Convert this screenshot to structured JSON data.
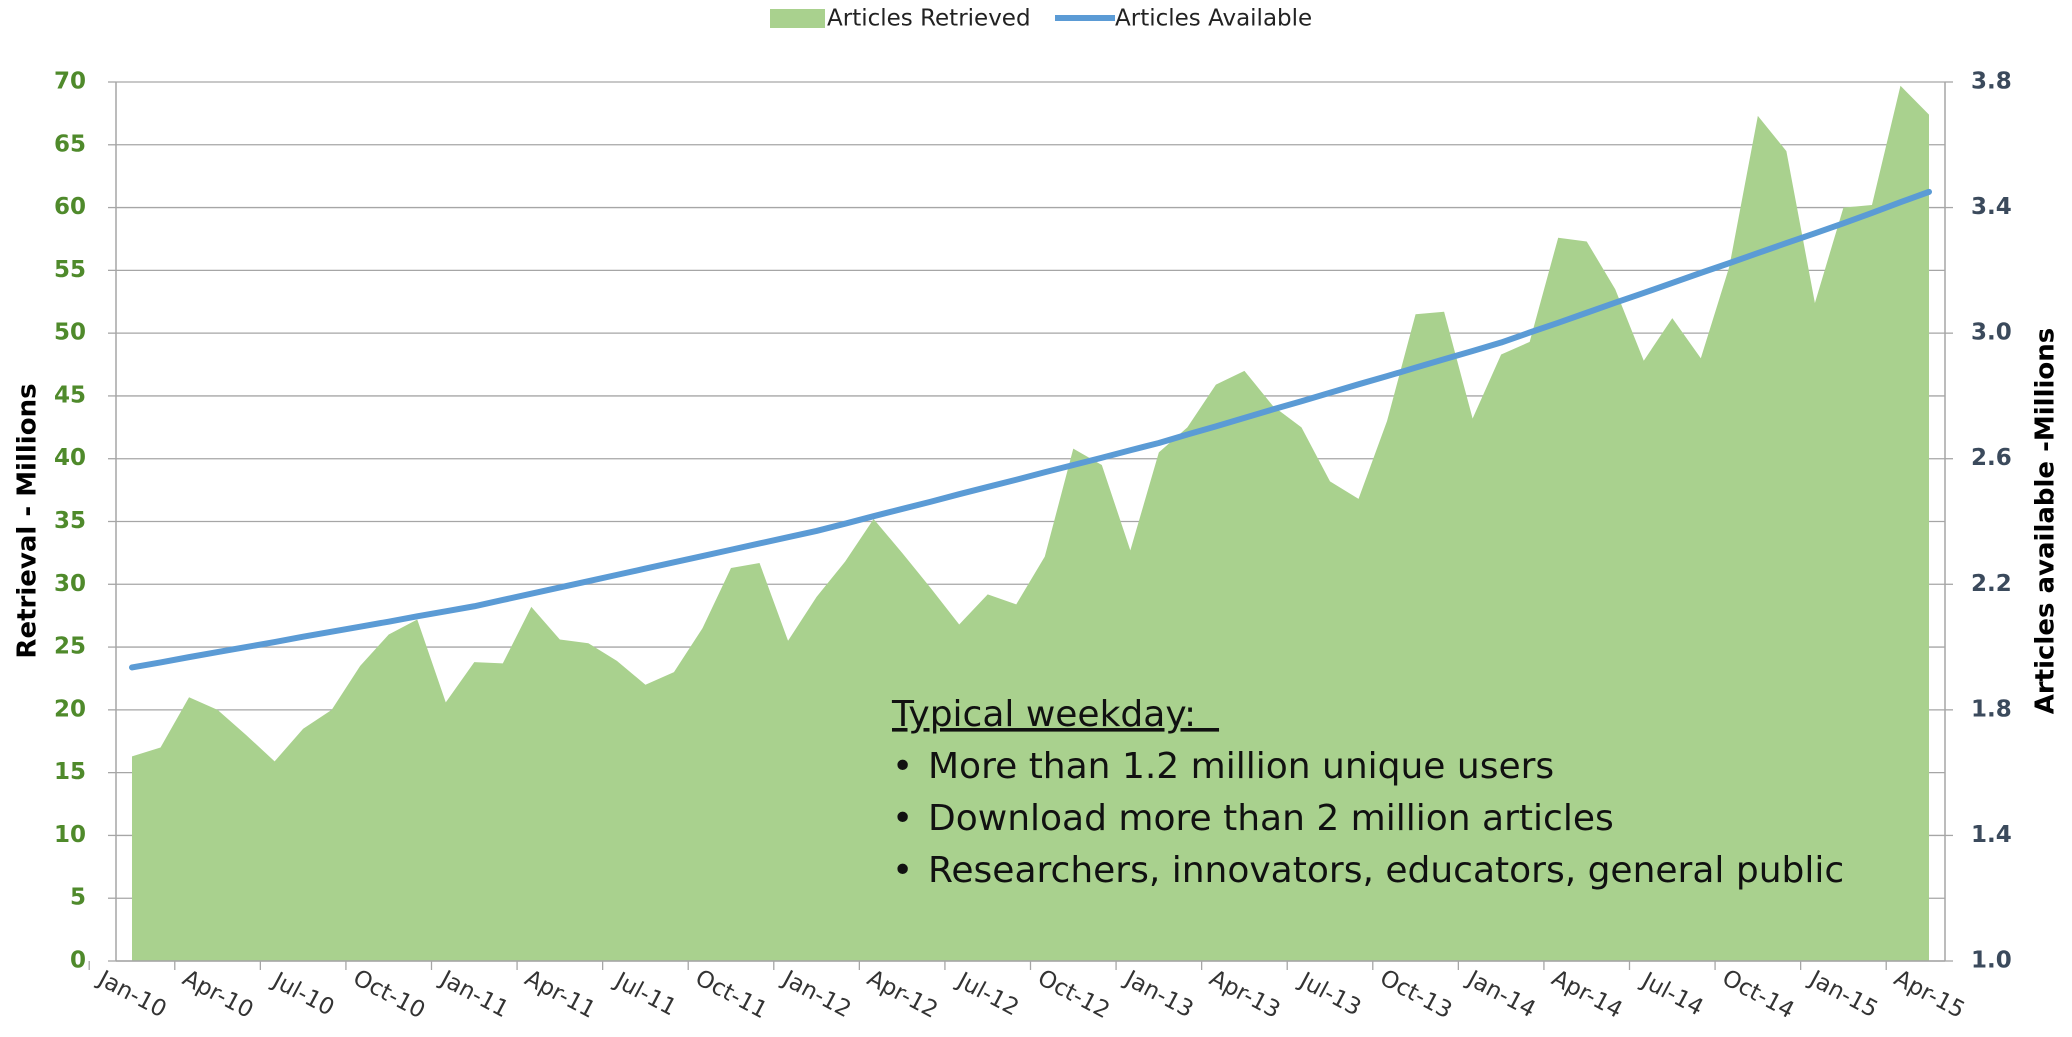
{
  "chart_data": {
    "type": "area-line",
    "categories": [
      "Jan-10",
      null,
      null,
      "Apr-10",
      null,
      null,
      "Jul-10",
      null,
      null,
      "Oct-10",
      null,
      null,
      "Jan-11",
      null,
      null,
      "Apr-11",
      null,
      null,
      "Jul-11",
      null,
      null,
      "Oct-11",
      null,
      null,
      "Jan-12",
      null,
      null,
      "Apr-12",
      null,
      null,
      "Jul-12",
      null,
      null,
      "Oct-12",
      null,
      null,
      "Jan-13",
      null,
      null,
      "Apr-13",
      null,
      null,
      "Jul-13",
      null,
      null,
      "Oct-13",
      null,
      null,
      "Jan-14",
      null,
      null,
      "Apr-14",
      null,
      null,
      "Jul-14",
      null,
      null,
      "Oct-14",
      null,
      null,
      "Jan-15",
      null,
      null,
      "Apr-15"
    ],
    "series": [
      {
        "name": "Articles Retrieved",
        "color": "#a9d18e",
        "kind": "area",
        "values": [
          16.3,
          17,
          21,
          20,
          18,
          15.9,
          18.5,
          20,
          23.5,
          26,
          27.2,
          20.6,
          23.8,
          23.7,
          28.2,
          25.6,
          25.3,
          23.9,
          22,
          23,
          26.5,
          31.3,
          31.7,
          25.5,
          29,
          31.8,
          35.2,
          32.5,
          29.7,
          26.8,
          29.2,
          28.4,
          32.2,
          40.8,
          39.5,
          32.7,
          40.5,
          42.5,
          45.9,
          47,
          44.2,
          42.5,
          38.2,
          36.8,
          43,
          51.5,
          51.7,
          43.2,
          48.3,
          49.3,
          57.6,
          57.3,
          53.5,
          47.8,
          51.2,
          48,
          55.3,
          67.3,
          64.5,
          52.4,
          60,
          60.2,
          69.7,
          67.4
        ]
      },
      {
        "name": "Articles Available",
        "color": "#5b9bd5",
        "kind": "line",
        "axis": "y2",
        "values": [
          1.935,
          1.951,
          1.968,
          1.984,
          2.0,
          2.016,
          2.033,
          2.049,
          2.065,
          2.081,
          2.098,
          2.114,
          2.13,
          2.15,
          2.17,
          2.19,
          2.21,
          2.23,
          2.25,
          2.27,
          2.29,
          2.31,
          2.33,
          2.35,
          2.37,
          2.393,
          2.417,
          2.44,
          2.463,
          2.487,
          2.51,
          2.533,
          2.557,
          2.58,
          2.603,
          2.627,
          2.65,
          2.677,
          2.703,
          2.73,
          2.757,
          2.783,
          2.81,
          2.837,
          2.863,
          2.89,
          2.917,
          2.943,
          2.97,
          3.002,
          3.033,
          3.065,
          3.097,
          3.128,
          3.16,
          3.192,
          3.223,
          3.255,
          3.287,
          3.318,
          3.35,
          3.383,
          3.417,
          3.45
        ]
      }
    ],
    "ylabel": "Retrieval  - Millions",
    "y2label": "Articles  available -Millions",
    "ylim": [
      0,
      70
    ],
    "yticks": [
      0,
      5,
      10,
      15,
      20,
      25,
      30,
      35,
      40,
      45,
      50,
      55,
      60,
      65,
      70
    ],
    "y2lim": [
      1,
      3.8
    ],
    "y2ticks": [
      {
        "value": 1,
        "label": "1.0"
      },
      1.4,
      1.8,
      2.2,
      2.6,
      {
        "value": 3,
        "label": "3.0"
      },
      3.4,
      3.8
    ],
    "grid": true,
    "legend": "top",
    "annotation": {
      "title": "Typical weekday:  ",
      "items": [
        "More than 1.2 million unique users",
        "Download more than 2 million articles",
        "Researchers, innovators, educators, general public"
      ]
    }
  }
}
